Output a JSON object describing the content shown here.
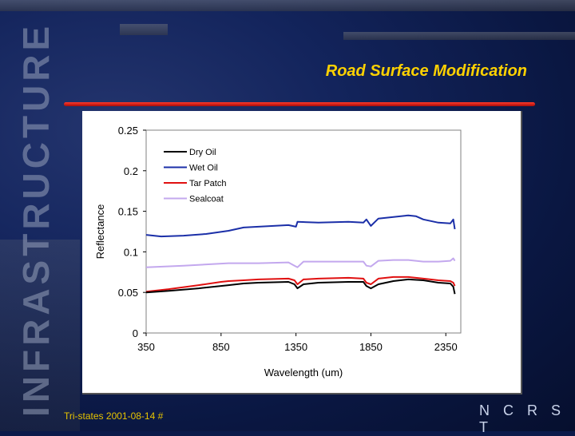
{
  "background_word": "INFRASTRUCTURE",
  "slide_title": "Road Surface Modification",
  "footer": {
    "left": "Tri-states 2001-08-14 #",
    "right": "N C R S T"
  },
  "colors": {
    "title": "#ffd200",
    "rule": "#d01a12",
    "footer_left": "#e6c300"
  },
  "chart_data": {
    "type": "line",
    "title": "",
    "xlabel": "Wavelength (um)",
    "ylabel": "Reflectance",
    "xlim": [
      350,
      2450
    ],
    "ylim": [
      0,
      0.25
    ],
    "x_ticks": [
      350,
      850,
      1350,
      1850,
      2350
    ],
    "x_tick_labels": [
      "350",
      "850",
      "1350",
      "1850",
      "2350"
    ],
    "y_ticks": [
      0,
      0.05,
      0.1,
      0.15,
      0.2,
      0.25
    ],
    "y_tick_labels": [
      "0",
      "0.05",
      "0.1",
      "0.15",
      "0.2",
      "0.25"
    ],
    "legend_position": "top-left",
    "series": [
      {
        "name": "Dry Oil",
        "color": "#000000",
        "x": [
          350,
          500,
          700,
          900,
          1000,
          1100,
          1300,
          1340,
          1360,
          1400,
          1500,
          1700,
          1800,
          1820,
          1850,
          1900,
          2000,
          2100,
          2200,
          2300,
          2380,
          2400,
          2410
        ],
        "y": [
          0.05,
          0.052,
          0.055,
          0.059,
          0.061,
          0.062,
          0.063,
          0.06,
          0.055,
          0.06,
          0.062,
          0.063,
          0.063,
          0.058,
          0.055,
          0.06,
          0.064,
          0.066,
          0.065,
          0.062,
          0.061,
          0.057,
          0.048
        ]
      },
      {
        "name": "Wet Oil",
        "color": "#1b2fa8",
        "x": [
          350,
          450,
          600,
          750,
          900,
          1000,
          1100,
          1300,
          1350,
          1360,
          1500,
          1700,
          1800,
          1820,
          1850,
          1900,
          2000,
          2100,
          2150,
          2200,
          2300,
          2380,
          2400,
          2410
        ],
        "y": [
          0.121,
          0.119,
          0.12,
          0.122,
          0.126,
          0.13,
          0.131,
          0.133,
          0.131,
          0.137,
          0.136,
          0.137,
          0.136,
          0.14,
          0.132,
          0.141,
          0.143,
          0.145,
          0.144,
          0.14,
          0.136,
          0.135,
          0.14,
          0.128
        ]
      },
      {
        "name": "Tar Patch",
        "color": "#e01010",
        "x": [
          350,
          500,
          700,
          850,
          900,
          1000,
          1100,
          1300,
          1340,
          1360,
          1400,
          1500,
          1700,
          1800,
          1820,
          1850,
          1900,
          2000,
          2100,
          2200,
          2300,
          2380,
          2400,
          2410
        ],
        "y": [
          0.051,
          0.054,
          0.059,
          0.063,
          0.064,
          0.065,
          0.066,
          0.067,
          0.065,
          0.06,
          0.066,
          0.067,
          0.068,
          0.067,
          0.062,
          0.06,
          0.067,
          0.069,
          0.069,
          0.067,
          0.065,
          0.064,
          0.062,
          0.058
        ]
      },
      {
        "name": "Sealcoat",
        "color": "#c3a8ee",
        "x": [
          350,
          600,
          900,
          1100,
          1300,
          1340,
          1360,
          1400,
          1600,
          1800,
          1820,
          1850,
          1900,
          2000,
          2100,
          2200,
          2300,
          2380,
          2400,
          2410
        ],
        "y": [
          0.081,
          0.083,
          0.086,
          0.086,
          0.087,
          0.083,
          0.081,
          0.088,
          0.088,
          0.088,
          0.083,
          0.082,
          0.089,
          0.09,
          0.09,
          0.088,
          0.088,
          0.089,
          0.092,
          0.089
        ]
      }
    ]
  }
}
